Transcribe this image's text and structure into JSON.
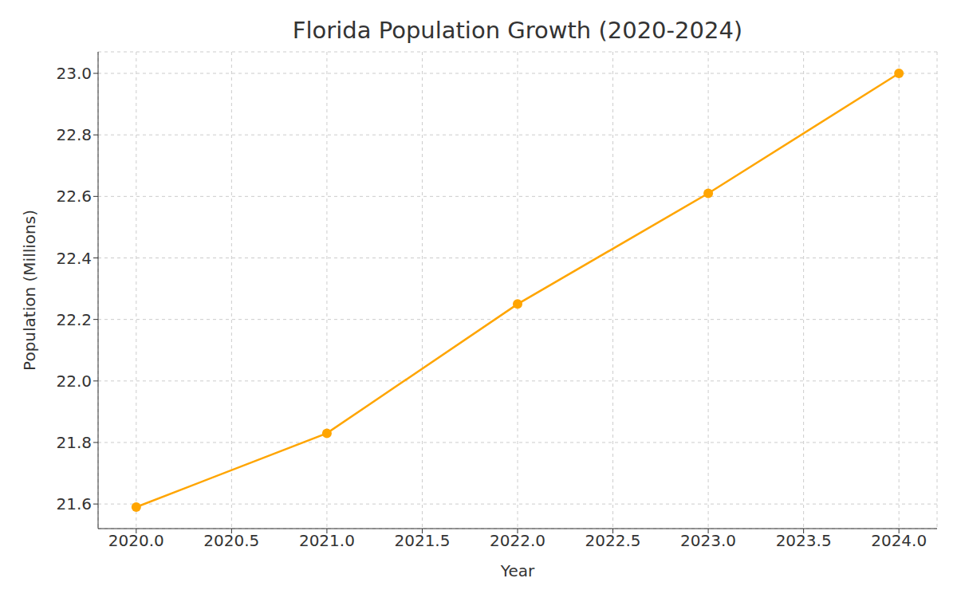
{
  "chart_data": {
    "type": "line",
    "title": "Florida Population Growth (2020-2024)",
    "x_label": "Year",
    "y_label": "Population (Millions)",
    "x": [
      2020,
      2021,
      2022,
      2023,
      2024
    ],
    "series": [
      {
        "name": "Population",
        "color": "#ffa500",
        "values": [
          21.59,
          21.83,
          22.25,
          22.61,
          23.0
        ],
        "marker": "o",
        "line_style": "solid"
      }
    ],
    "xlim": [
      2019.8,
      2024.2
    ],
    "xticks": [
      {
        "value": 2020,
        "label": "2020.0"
      },
      {
        "value": 2020.5,
        "label": "2020.5"
      },
      {
        "value": 2021,
        "label": "2021.0"
      },
      {
        "value": 2021.5,
        "label": "2021.5"
      },
      {
        "value": 2022,
        "label": "2022.0"
      },
      {
        "value": 2022.5,
        "label": "2022.5"
      },
      {
        "value": 2023,
        "label": "2023.0"
      },
      {
        "value": 2023.5,
        "label": "2023.5"
      },
      {
        "value": 2024,
        "label": "2024.0"
      }
    ],
    "ylim": [
      21.52,
      23.07
    ],
    "yticks": [
      21.6,
      21.8,
      {
        "value": 22,
        "label": "22.0"
      },
      22.2,
      22.4,
      22.6,
      22.8,
      {
        "value": 23,
        "label": "23.0"
      }
    ],
    "grid": true
  }
}
